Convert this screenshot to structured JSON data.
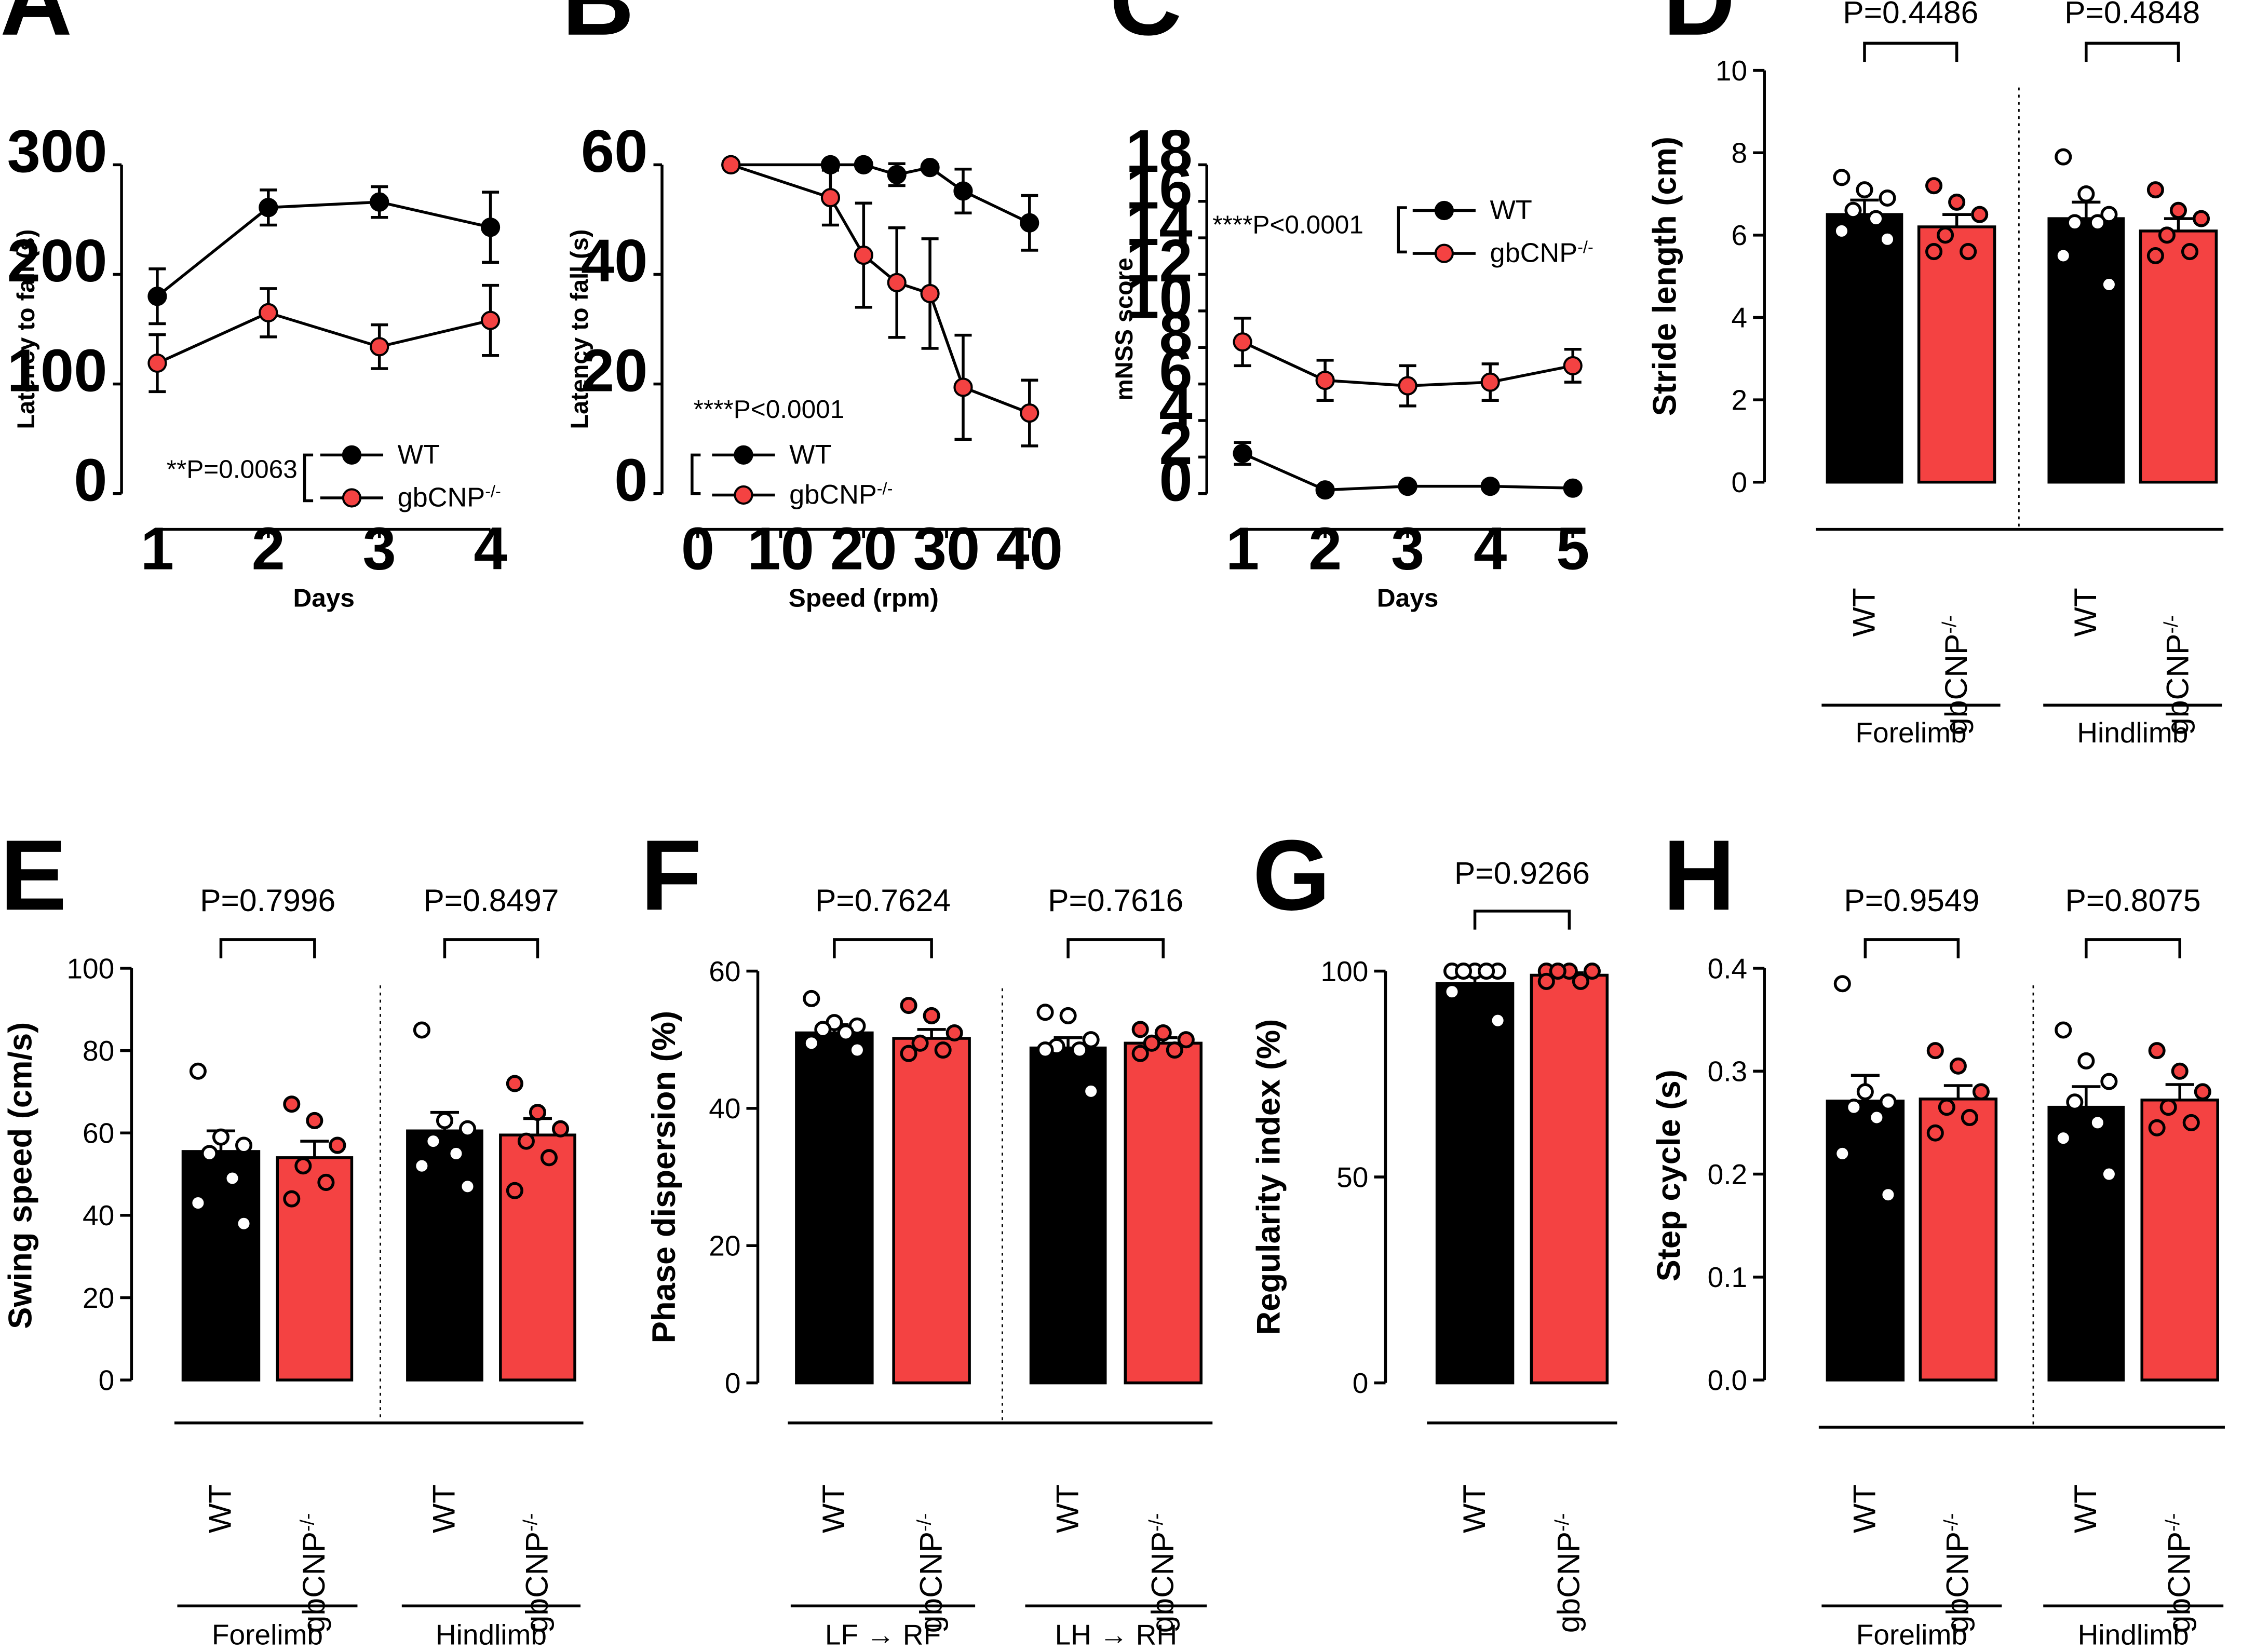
{
  "colors": {
    "wt": "#000000",
    "ko": "#f44242",
    "axis": "#000000"
  },
  "chart_data": [
    {
      "panel": "A",
      "type": "line",
      "xlabel": "Days",
      "ylabel": "Latency to fall (s)",
      "xlim": [
        1,
        4
      ],
      "ylim": [
        0,
        300
      ],
      "xticks": [
        1,
        2,
        3,
        4
      ],
      "yticks": [
        0,
        100,
        200,
        300
      ],
      "series": [
        {
          "name": "WT",
          "x": [
            1,
            2,
            3,
            4
          ],
          "y": [
            180,
            261,
            266,
            243
          ],
          "err": [
            25,
            16,
            14,
            32
          ]
        },
        {
          "name": "gbCNP",
          "sup": "-/-",
          "x": [
            1,
            2,
            3,
            4
          ],
          "y": [
            119,
            165,
            134,
            158
          ],
          "err": [
            26,
            22,
            20,
            32
          ]
        }
      ],
      "annotation": "**P=0.0063",
      "legend": "bottom-right"
    },
    {
      "panel": "B",
      "type": "line",
      "xlabel": "Speed (rpm)",
      "ylabel": "Latency to fall (s)",
      "xlim": [
        0,
        40
      ],
      "ylim": [
        0,
        60
      ],
      "xticks": [
        0,
        10,
        20,
        30,
        40
      ],
      "yticks": [
        0,
        20,
        40,
        60
      ],
      "series": [
        {
          "name": "WT",
          "x": [
            4,
            16,
            20,
            24,
            28,
            32,
            40
          ],
          "y": [
            60,
            60,
            60,
            58.2,
            59.5,
            55.2,
            49.4
          ],
          "err": [
            0,
            0,
            0,
            2,
            0,
            4,
            5
          ]
        },
        {
          "name": "gbCNP",
          "sup": "-/-",
          "x": [
            4,
            16,
            20,
            24,
            28,
            32,
            40
          ],
          "y": [
            60,
            54,
            43.5,
            38.5,
            36.5,
            19.4,
            14.7
          ],
          "err": [
            0,
            5,
            9.5,
            10,
            10,
            9.5,
            6
          ]
        }
      ],
      "annotation": "****P<0.0001",
      "legend": "bottom-left"
    },
    {
      "panel": "C",
      "type": "line",
      "xlabel": "Days",
      "ylabel": "mNSS score",
      "xlim": [
        1,
        5
      ],
      "ylim": [
        0,
        18
      ],
      "xticks": [
        1,
        2,
        3,
        4,
        5
      ],
      "yticks": [
        0,
        2,
        4,
        6,
        8,
        10,
        12,
        14,
        16,
        18
      ],
      "series": [
        {
          "name": "WT",
          "x": [
            1,
            2,
            3,
            4,
            5
          ],
          "y": [
            2.2,
            0.2,
            0.4,
            0.4,
            0.3
          ],
          "err": [
            0.6,
            0,
            0,
            0,
            0
          ]
        },
        {
          "name": "gbCNP",
          "sup": "-/-",
          "x": [
            1,
            2,
            3,
            4,
            5
          ],
          "y": [
            8.3,
            6.2,
            5.9,
            6.1,
            7.0
          ],
          "err": [
            1.3,
            1.1,
            1.1,
            1.0,
            0.9
          ]
        }
      ],
      "annotation": "****P<0.0001",
      "legend": "top-right"
    },
    {
      "panel": "D",
      "type": "bar",
      "ylabel": "Stride length (cm)",
      "ylim": [
        0,
        10
      ],
      "yticks": [
        "0",
        "2",
        "4",
        "6",
        "8",
        "10"
      ],
      "groups": [
        {
          "label": "Forelimb",
          "p": "P=0.4486",
          "bars": [
            {
              "name": "WT",
              "mean": 6.5,
              "err": 0.35,
              "points": [
                7.4,
                7.1,
                6.9,
                6.6,
                6.4,
                6.1,
                5.9
              ]
            },
            {
              "name": "gbCNP",
              "sup": "-/-",
              "mean": 6.2,
              "err": 0.3,
              "points": [
                7.2,
                6.8,
                6.5,
                6.0,
                5.6,
                5.6
              ]
            }
          ]
        },
        {
          "label": "Hindlimb",
          "p": "P=0.4848",
          "bars": [
            {
              "name": "WT",
              "mean": 6.4,
              "err": 0.4,
              "points": [
                7.9,
                7.0,
                6.5,
                6.3,
                6.3,
                5.5,
                4.8
              ]
            },
            {
              "name": "gbCNP",
              "sup": "-/-",
              "mean": 6.1,
              "err": 0.3,
              "points": [
                7.1,
                6.6,
                6.4,
                6.0,
                5.6,
                5.5
              ]
            }
          ]
        }
      ]
    },
    {
      "panel": "E",
      "type": "bar",
      "ylabel": "Swing speed (cm/s)",
      "ylim": [
        0,
        100
      ],
      "yticks": [
        "0",
        "20",
        "40",
        "60",
        "80",
        "100"
      ],
      "groups": [
        {
          "label": "Forelimb",
          "p": "P=0.7996",
          "bars": [
            {
              "name": "WT",
              "mean": 55.5,
              "err": 5,
              "points": [
                75,
                59,
                57,
                55,
                49,
                43,
                38
              ]
            },
            {
              "name": "gbCNP",
              "sup": "-/-",
              "mean": 54,
              "err": 4,
              "points": [
                67,
                63,
                57,
                52,
                48,
                44
              ]
            }
          ]
        },
        {
          "label": "Hindlimb",
          "p": "P=0.8497",
          "bars": [
            {
              "name": "WT",
              "mean": 60.5,
              "err": 4.5,
              "points": [
                85,
                63,
                61,
                58,
                55,
                52,
                47
              ]
            },
            {
              "name": "gbCNP",
              "sup": "-/-",
              "mean": 59.5,
              "err": 4,
              "points": [
                72,
                65,
                61,
                58,
                54,
                46
              ]
            }
          ]
        }
      ]
    },
    {
      "panel": "F",
      "type": "bar",
      "ylabel": "Phase dispersion (%)",
      "ylim": [
        0,
        60
      ],
      "yticks": [
        "0",
        "20",
        "40",
        "60"
      ],
      "groups": [
        {
          "label": "LF → RF",
          "p": "P=0.7624",
          "bars": [
            {
              "name": "WT",
              "mean": 51,
              "err": 1.2,
              "points": [
                56,
                52.5,
                52,
                51.5,
                51,
                49.5,
                48.5
              ]
            },
            {
              "name": "gbCNP",
              "sup": "-/-",
              "mean": 50.2,
              "err": 1.3,
              "points": [
                55,
                53.5,
                51,
                49.5,
                48.5,
                48
              ]
            }
          ]
        },
        {
          "label": "LH → RH",
          "p": "P=0.7616",
          "bars": [
            {
              "name": "WT",
              "mean": 48.8,
              "err": 1.5,
              "points": [
                54,
                53.5,
                50,
                49,
                48.5,
                48.5,
                42.5
              ]
            },
            {
              "name": "gbCNP",
              "sup": "-/-",
              "mean": 49.5,
              "err": 0.8,
              "points": [
                51.5,
                51,
                50,
                49.5,
                48.5,
                48
              ]
            }
          ]
        }
      ]
    },
    {
      "panel": "G",
      "type": "bar",
      "ylabel": "Regularity index (%)",
      "ylim": [
        0,
        100
      ],
      "yticks": [
        "0",
        "50",
        "100"
      ],
      "groups": [
        {
          "label": "",
          "p": "P=0.9266",
          "bars": [
            {
              "name": "WT",
              "mean": 97,
              "err": 1.8,
              "points": [
                100,
                100,
                100,
                100,
                100,
                95,
                88
              ]
            },
            {
              "name": "gbCNP",
              "sup": "-/-",
              "mean": 99,
              "err": 0.6,
              "points": [
                100,
                100,
                100,
                100,
                97.5,
                97.5
              ]
            }
          ]
        }
      ]
    },
    {
      "panel": "H",
      "type": "bar",
      "ylabel": "Step cycle (s)",
      "ylim": [
        0,
        0.4
      ],
      "yticks": [
        "0.0",
        "0.1",
        "0.2",
        "0.3",
        "0.4"
      ],
      "groups": [
        {
          "label": "Forelimb",
          "p": "P=0.9549",
          "bars": [
            {
              "name": "WT",
              "mean": 0.271,
              "err": 0.025,
              "points": [
                0.385,
                0.28,
                0.27,
                0.265,
                0.255,
                0.22,
                0.18
              ]
            },
            {
              "name": "gbCNP",
              "sup": "-/-",
              "mean": 0.273,
              "err": 0.013,
              "points": [
                0.32,
                0.305,
                0.28,
                0.265,
                0.255,
                0.24
              ]
            }
          ]
        },
        {
          "label": "Hindlimb",
          "p": "P=0.8075",
          "bars": [
            {
              "name": "WT",
              "mean": 0.265,
              "err": 0.02,
              "points": [
                0.34,
                0.31,
                0.29,
                0.27,
                0.25,
                0.235,
                0.2
              ]
            },
            {
              "name": "gbCNP",
              "sup": "-/-",
              "mean": 0.272,
              "err": 0.015,
              "points": [
                0.32,
                0.3,
                0.28,
                0.265,
                0.25,
                0.245
              ]
            }
          ]
        }
      ]
    }
  ]
}
